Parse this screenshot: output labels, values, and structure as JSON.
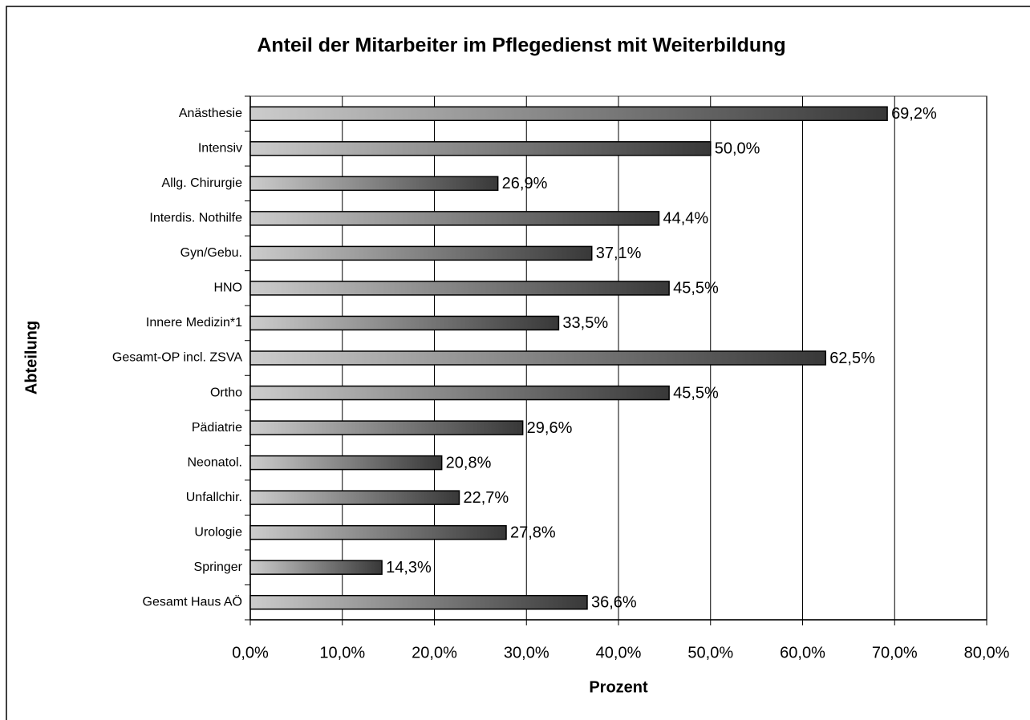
{
  "chart_data": {
    "type": "bar",
    "orientation": "horizontal",
    "title": "Anteil der Mitarbeiter im Pflegedienst mit Weiterbildung",
    "x_label": "Prozent",
    "y_label": "Abteilung",
    "categories": [
      "Anästhesie",
      "Intensiv",
      "Allg. Chirurgie",
      "Interdis. Nothilfe",
      "Gyn/Gebu.",
      "HNO",
      "Innere Medizin*1",
      "Gesamt-OP incl. ZSVA",
      "Ortho",
      "Pädiatrie",
      "Neonatol.",
      "Unfallchir.",
      "Urologie",
      "Springer",
      "Gesamt Haus AÖ"
    ],
    "values": [
      69.2,
      50.0,
      26.9,
      44.4,
      37.1,
      45.5,
      33.5,
      62.5,
      45.5,
      29.6,
      20.8,
      22.7,
      27.8,
      14.3,
      36.6
    ],
    "value_labels": [
      "69,2%",
      "50,0%",
      "26,9%",
      "44,4%",
      "37,1%",
      "45,5%",
      "33,5%",
      "62,5%",
      "45,5%",
      "29,6%",
      "20,8%",
      "22,7%",
      "27,8%",
      "14,3%",
      "36,6%"
    ],
    "xlim": [
      0,
      80
    ],
    "xticks": [
      {
        "value": 0,
        "label": "0,0%"
      },
      {
        "value": 10,
        "label": "10,0%"
      },
      {
        "value": 20,
        "label": "20,0%"
      },
      {
        "value": 30,
        "label": "30,0%"
      },
      {
        "value": 40,
        "label": "40,0%"
      },
      {
        "value": 50,
        "label": "50,0%"
      },
      {
        "value": 60,
        "label": "60,0%"
      },
      {
        "value": 70,
        "label": "70,0%"
      },
      {
        "value": 80,
        "label": "80,0%"
      }
    ],
    "grid": true,
    "gradient_colors": [
      "#cccccc",
      "#383838"
    ]
  }
}
